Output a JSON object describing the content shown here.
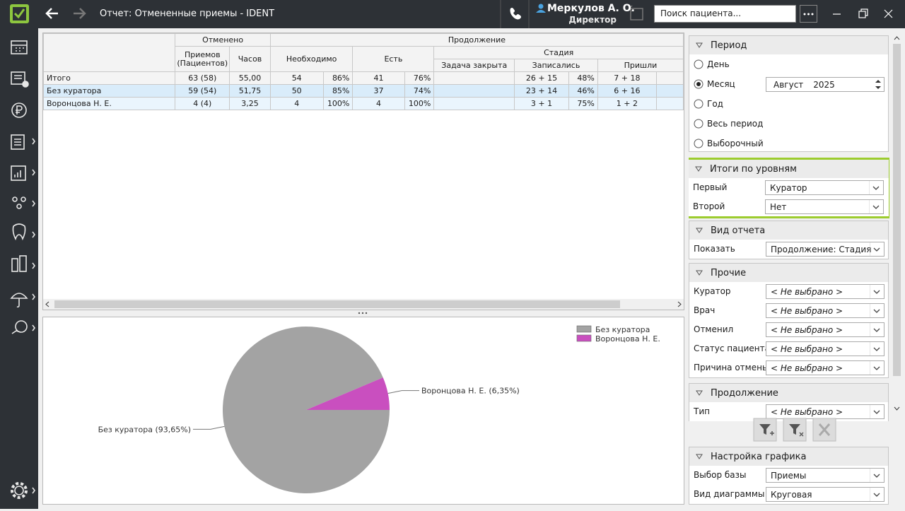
{
  "titlebar": {
    "title": "Отчет: Отмененные приемы - IDENT",
    "user": "Меркулов А. О.",
    "role": "Директор",
    "search": "Поиск пациента..."
  },
  "table": {
    "header": {
      "canceled": "Отменено",
      "continuation": "Продолжение",
      "appointments": "Приемов (Пациентов)",
      "hours": "Часов",
      "needed": "Необходимо",
      "exists": "Есть",
      "stage": "Стадия",
      "task_closed": "Задача закрыта",
      "signed_up": "Записались",
      "came": "Пришли"
    },
    "rows": [
      [
        "Итого",
        "63 (58)",
        "55,00",
        "54",
        "86%",
        "41",
        "76%",
        null,
        "26 + 15",
        "48%",
        "7 + 18"
      ],
      [
        "Без куратора",
        "59 (54)",
        "51,75",
        "50",
        "85%",
        "37",
        "74%",
        null,
        "23 + 14",
        "46%",
        "6 + 16"
      ],
      [
        "Воронцова Н. Е.",
        "4 (4)",
        "3,25",
        "4",
        "100%",
        "4",
        "100%",
        null,
        "3 + 1",
        "75%",
        "1 + 2"
      ]
    ]
  },
  "chart_data": {
    "type": "pie",
    "categories": [
      "Без куратора",
      "Воронцова Н. Е."
    ],
    "values": [
      93.65,
      6.35
    ],
    "value_labels": [
      "Без куратора (93,65%)",
      "Воронцова Н. Е. (6,35%)"
    ],
    "colors": [
      "#a3a3a3",
      "#c94fbf"
    ],
    "legend": "top-right"
  },
  "panel": {
    "period": {
      "title": "Период",
      "options": [
        "День",
        "Месяц",
        "Год",
        "Весь период",
        "Выборочный"
      ],
      "selected": 1,
      "month": "Август",
      "year": "2025"
    },
    "levels": {
      "title": "Итоги по уровням",
      "rows": [
        {
          "label": "Первый",
          "value": "Куратор"
        },
        {
          "label": "Второй",
          "value": "Нет"
        }
      ]
    },
    "report_view": {
      "title": "Вид отчета",
      "rows": [
        {
          "label": "Показать",
          "value": "Продолжение: Стадия"
        }
      ]
    },
    "other": {
      "title": "Прочие",
      "rows": [
        {
          "label": "Куратор",
          "value": "< Не выбрано >"
        },
        {
          "label": "Врач",
          "value": "< Не выбрано >"
        },
        {
          "label": "Отменил",
          "value": "< Не выбрано >"
        },
        {
          "label": "Статус пациента",
          "value": "< Не выбрано >"
        },
        {
          "label": "Причина отмены",
          "value": "< Не выбрано >"
        }
      ]
    },
    "continuation": {
      "title": "Продолжение",
      "rows": [
        {
          "label": "Тип",
          "value": "< Не выбрано >"
        }
      ]
    },
    "chart_settings": {
      "title": "Настройка графика",
      "rows": [
        {
          "label": "Выбор базы",
          "value": "Приемы"
        },
        {
          "label": "Вид диаграммы",
          "value": "Круговая"
        }
      ]
    }
  }
}
